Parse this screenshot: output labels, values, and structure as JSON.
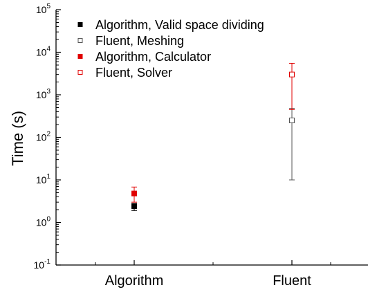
{
  "chart_data": {
    "type": "scatter",
    "ylabel": "Time (s)",
    "xlabel": "",
    "yscale": "log",
    "ylim": [
      0.1,
      100000
    ],
    "grid": false,
    "legend_position": "top-left",
    "categories": [
      "Algorithm",
      "Fluent"
    ],
    "y_ticks": [
      {
        "value": 0.1,
        "mantissa": "10",
        "exponent": "-1"
      },
      {
        "value": 1,
        "mantissa": "10",
        "exponent": "0"
      },
      {
        "value": 10,
        "mantissa": "10",
        "exponent": "1"
      },
      {
        "value": 100,
        "mantissa": "10",
        "exponent": "2"
      },
      {
        "value": 1000,
        "mantissa": "10",
        "exponent": "3"
      },
      {
        "value": 10000,
        "mantissa": "10",
        "exponent": "4"
      },
      {
        "value": 100000,
        "mantissa": "10",
        "exponent": "5"
      }
    ],
    "series": [
      {
        "name": "Algorithm, Valid space dividing",
        "color": "#000000",
        "marker": "filled-square",
        "category": "Algorithm",
        "y": 2.4,
        "err_low": 1.9,
        "err_high": 2.8
      },
      {
        "name": "Fluent, Meshing",
        "color": "#555555",
        "marker": "open-square",
        "category": "Fluent",
        "y": 250,
        "err_low": 10,
        "err_high": 480
      },
      {
        "name": "Algorithm, Calculator",
        "color": "#e00000",
        "marker": "filled-square",
        "category": "Algorithm",
        "y": 4.8,
        "err_low": 3.0,
        "err_high": 6.8
      },
      {
        "name": "Fluent, Solver",
        "color": "#e00000",
        "marker": "open-square",
        "category": "Fluent",
        "y": 3000,
        "err_low": 450,
        "err_high": 5500
      }
    ]
  }
}
